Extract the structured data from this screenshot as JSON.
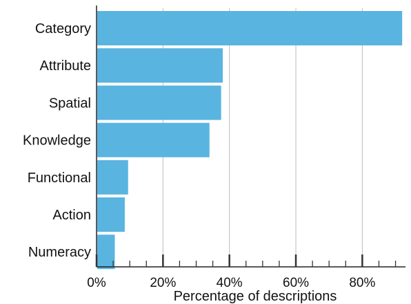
{
  "chart_data": {
    "type": "bar",
    "orientation": "horizontal",
    "categories": [
      "Category",
      "Attribute",
      "Spatial",
      "Knowledge",
      "Functional",
      "Action",
      "Numeracy"
    ],
    "values": [
      92,
      38,
      37.5,
      34,
      9.5,
      8.5,
      5.5
    ],
    "xlabel": "Percentage of descriptions",
    "ylabel": "",
    "xlim": [
      0,
      93
    ],
    "xticks": [
      0,
      20,
      40,
      60,
      80
    ],
    "xtick_labels": [
      "0%",
      "20%",
      "40%",
      "60%",
      "80%"
    ],
    "minor_tick_step": 5,
    "grid": "vertical major gridlines",
    "bar_color": "#5ab4e0",
    "gridline_color": "#bbbbbb"
  }
}
